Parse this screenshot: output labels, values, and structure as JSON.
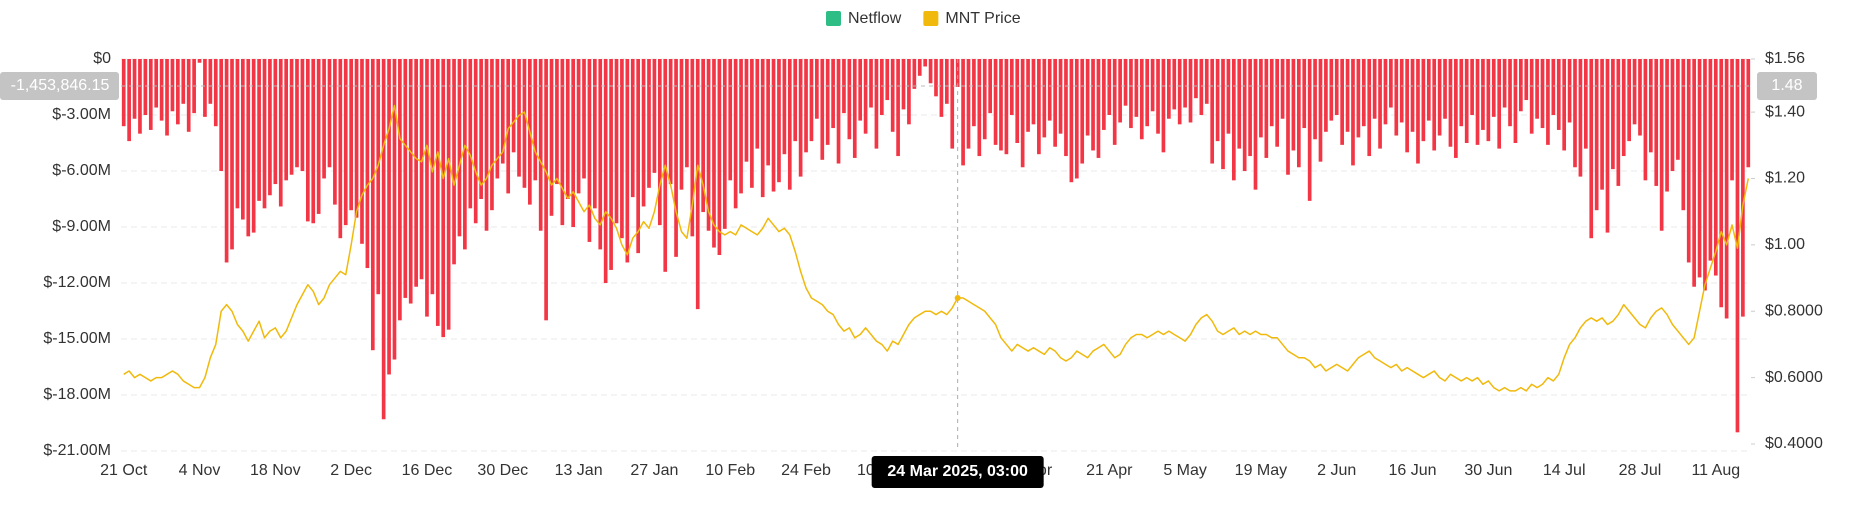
{
  "chart_data": {
    "type": "bar-line",
    "categories": [
      "21 Oct",
      null,
      null,
      null,
      null,
      null,
      null,
      null,
      null,
      null,
      null,
      null,
      null,
      null,
      "4 Nov",
      null,
      null,
      null,
      null,
      null,
      null,
      null,
      null,
      null,
      null,
      null,
      null,
      null,
      "18 Nov",
      null,
      null,
      null,
      null,
      null,
      null,
      null,
      null,
      null,
      null,
      null,
      null,
      null,
      "2 Dec",
      null,
      null,
      null,
      null,
      null,
      null,
      null,
      null,
      null,
      null,
      null,
      null,
      null,
      "16 Dec",
      null,
      null,
      null,
      null,
      null,
      null,
      null,
      null,
      null,
      null,
      null,
      null,
      null,
      "30 Dec",
      null,
      null,
      null,
      null,
      null,
      null,
      null,
      null,
      null,
      null,
      null,
      null,
      null,
      "13 Jan",
      null,
      null,
      null,
      null,
      null,
      null,
      null,
      null,
      null,
      null,
      null,
      null,
      null,
      "27 Jan",
      null,
      null,
      null,
      null,
      null,
      null,
      null,
      null,
      null,
      null,
      null,
      null,
      null,
      "10 Feb",
      null,
      null,
      null,
      null,
      null,
      null,
      null,
      null,
      null,
      null,
      null,
      null,
      null,
      "24 Feb",
      null,
      null,
      null,
      null,
      null,
      null,
      null,
      null,
      null,
      null,
      null,
      null,
      null,
      "10 Mar",
      null,
      null,
      null,
      null,
      null,
      null,
      null,
      null,
      null,
      null,
      null,
      null,
      null,
      "24 Mar",
      null,
      null,
      null,
      null,
      null,
      null,
      null,
      null,
      null,
      null,
      null,
      null,
      null,
      "7 Apr",
      null,
      null,
      null,
      null,
      null,
      null,
      null,
      null,
      null,
      null,
      null,
      null,
      null,
      "21 Apr",
      null,
      null,
      null,
      null,
      null,
      null,
      null,
      null,
      null,
      null,
      null,
      null,
      null,
      "5 May",
      null,
      null,
      null,
      null,
      null,
      null,
      null,
      null,
      null,
      null,
      null,
      null,
      null,
      "19 May",
      null,
      null,
      null,
      null,
      null,
      null,
      null,
      null,
      null,
      null,
      null,
      null,
      null,
      "2 Jun",
      null,
      null,
      null,
      null,
      null,
      null,
      null,
      null,
      null,
      null,
      null,
      null,
      null,
      "16 Jun",
      null,
      null,
      null,
      null,
      null,
      null,
      null,
      null,
      null,
      null,
      null,
      null,
      null,
      "30 Jun",
      null,
      null,
      null,
      null,
      null,
      null,
      null,
      null,
      null,
      null,
      null,
      null,
      null,
      "14 Jul",
      null,
      null,
      null,
      null,
      null,
      null,
      null,
      null,
      null,
      null,
      null,
      null,
      null,
      "28 Jul",
      null,
      null,
      null,
      null,
      null,
      null,
      null,
      null,
      null,
      null,
      null,
      null,
      null,
      "11 Aug",
      null,
      null,
      null,
      null,
      null,
      null
    ],
    "series": [
      {
        "name": "Netflow",
        "color": "#2ebd85",
        "negative_color": "#f23645",
        "type": "bar",
        "values": [
          -3.6,
          -4.4,
          -3.2,
          -4.0,
          -3.0,
          -3.8,
          -2.6,
          -3.3,
          -4.1,
          -2.8,
          -3.5,
          -2.4,
          -3.9,
          -2.9,
          -0.2,
          -3.1,
          -2.4,
          -3.6,
          -6.0,
          -10.9,
          -10.2,
          -8.0,
          -8.6,
          -9.5,
          -9.3,
          -7.6,
          -8.0,
          -7.3,
          -6.7,
          -7.9,
          -6.5,
          -6.2,
          -5.8,
          -6.0,
          -8.7,
          -8.8,
          -8.3,
          -6.4,
          -5.8,
          -7.8,
          -9.6,
          -8.9,
          -8.1,
          -8.5,
          -9.9,
          -11.2,
          -15.6,
          -12.6,
          -19.3,
          -16.9,
          -16.1,
          -14.0,
          -12.8,
          -13.1,
          -12.2,
          -11.8,
          -13.8,
          -12.6,
          -14.3,
          -14.9,
          -14.5,
          -11.0,
          -9.5,
          -10.2,
          -8.0,
          -8.8,
          -7.5,
          -9.2,
          -8.1,
          -6.4,
          -5.6,
          -7.2,
          -5.0,
          -6.3,
          -6.9,
          -7.8,
          -6.5,
          -9.2,
          -14.0,
          -8.4,
          -6.7,
          -8.9,
          -7.5,
          -9.0,
          -7.2,
          -6.4,
          -9.8,
          -8.0,
          -10.2,
          -12.0,
          -11.3,
          -8.8,
          -9.6,
          -10.9,
          -7.4,
          -10.4,
          -7.9,
          -6.9,
          -6.1,
          -8.9,
          -11.4,
          -6.7,
          -10.6,
          -7.0,
          -5.8,
          -9.5,
          -13.4,
          -8.2,
          -9.2,
          -10.1,
          -10.5,
          -9.1,
          -6.5,
          -8.0,
          -7.2,
          -5.5,
          -6.9,
          -4.8,
          -7.4,
          -5.7,
          -7.1,
          -6.6,
          -5.1,
          -7.0,
          -4.4,
          -6.3,
          -5.0,
          -4.4,
          -3.2,
          -5.4,
          -4.6,
          -3.7,
          -5.6,
          -2.9,
          -4.3,
          -5.3,
          -3.3,
          -4.0,
          -2.6,
          -4.8,
          -3.0,
          -2.2,
          -3.9,
          -5.2,
          -2.7,
          -3.5,
          -1.6,
          -0.9,
          -0.4,
          -1.3,
          -2.0,
          -3.1,
          -2.4,
          -4.8,
          -1.5,
          -5.7,
          -4.8,
          -3.6,
          -5.2,
          -4.3,
          -2.9,
          -4.6,
          -4.9,
          -5.1,
          -3.0,
          -4.5,
          -5.8,
          -3.9,
          -3.5,
          -5.1,
          -4.2,
          -3.3,
          -4.7,
          -4.0,
          -5.2,
          -6.6,
          -6.4,
          -5.6,
          -4.1,
          -4.9,
          -5.3,
          -3.8,
          -3.0,
          -4.6,
          -3.4,
          -2.5,
          -3.7,
          -3.1,
          -4.3,
          -3.6,
          -2.8,
          -4.0,
          -5.0,
          -3.2,
          -2.7,
          -3.5,
          -2.6,
          -3.4,
          -2.1,
          -3.0,
          -2.4,
          -5.6,
          -4.4,
          -5.9,
          -4.0,
          -6.5,
          -4.8,
          -6.0,
          -5.2,
          -7.0,
          -4.2,
          -5.3,
          -3.6,
          -4.7,
          -3.2,
          -6.2,
          -4.9,
          -5.8,
          -3.7,
          -7.6,
          -4.3,
          -5.5,
          -3.9,
          -3.3,
          -3.0,
          -4.6,
          -3.9,
          -5.7,
          -4.2,
          -3.6,
          -5.2,
          -3.2,
          -4.8,
          -3.5,
          -2.6,
          -4.1,
          -3.4,
          -5.0,
          -3.9,
          -5.6,
          -4.4,
          -3.3,
          -4.9,
          -4.1,
          -3.2,
          -4.7,
          -5.3,
          -3.6,
          -4.5,
          -3.0,
          -4.6,
          -3.8,
          -4.4,
          -3.1,
          -4.8,
          -2.6,
          -3.6,
          -4.5,
          -2.8,
          -2.2,
          -4.0,
          -3.2,
          -3.7,
          -4.6,
          -3.0,
          -3.8,
          -4.9,
          -3.4,
          -5.8,
          -6.3,
          -4.8,
          -9.6,
          -8.1,
          -7.0,
          -9.3,
          -5.9,
          -6.8,
          -5.2,
          -4.4,
          -3.5,
          -4.1,
          -6.5,
          -5.0,
          -6.8,
          -9.2,
          -7.1,
          -6.0,
          -5.4,
          -8.1,
          -10.9,
          -12.2,
          -11.7,
          -12.4,
          -10.8,
          -11.6,
          -13.3,
          -13.9,
          -6.5,
          -20.0,
          -13.8,
          -5.8
        ]
      },
      {
        "name": "MNT Price",
        "color": "#f0b90b",
        "type": "line",
        "axis": "y2",
        "values": [
          0.61,
          0.62,
          0.6,
          0.61,
          0.6,
          0.59,
          0.6,
          0.6,
          0.61,
          0.62,
          0.61,
          0.59,
          0.58,
          0.57,
          0.57,
          0.6,
          0.66,
          0.7,
          0.8,
          0.82,
          0.8,
          0.76,
          0.74,
          0.71,
          0.74,
          0.77,
          0.72,
          0.74,
          0.75,
          0.72,
          0.74,
          0.78,
          0.82,
          0.85,
          0.88,
          0.86,
          0.82,
          0.84,
          0.88,
          0.9,
          0.92,
          0.91,
          1.0,
          1.1,
          1.15,
          1.18,
          1.2,
          1.24,
          1.3,
          1.35,
          1.42,
          1.32,
          1.3,
          1.28,
          1.26,
          1.25,
          1.3,
          1.22,
          1.28,
          1.2,
          1.26,
          1.18,
          1.24,
          1.3,
          1.27,
          1.22,
          1.18,
          1.2,
          1.24,
          1.26,
          1.28,
          1.35,
          1.37,
          1.39,
          1.4,
          1.34,
          1.28,
          1.25,
          1.22,
          1.18,
          1.2,
          1.17,
          1.14,
          1.16,
          1.13,
          1.1,
          1.12,
          1.08,
          1.06,
          1.1,
          1.08,
          1.05,
          1.0,
          0.97,
          1.02,
          1.04,
          1.07,
          1.05,
          1.1,
          1.18,
          1.24,
          1.18,
          1.1,
          1.04,
          1.02,
          1.12,
          1.24,
          1.18,
          1.1,
          1.06,
          1.04,
          1.03,
          1.04,
          1.03,
          1.06,
          1.05,
          1.04,
          1.03,
          1.05,
          1.08,
          1.06,
          1.04,
          1.05,
          1.03,
          0.98,
          0.92,
          0.87,
          0.84,
          0.83,
          0.82,
          0.8,
          0.79,
          0.76,
          0.74,
          0.75,
          0.72,
          0.73,
          0.75,
          0.73,
          0.71,
          0.7,
          0.68,
          0.71,
          0.7,
          0.73,
          0.76,
          0.78,
          0.79,
          0.8,
          0.8,
          0.79,
          0.8,
          0.79,
          0.81,
          0.84,
          0.84,
          0.83,
          0.82,
          0.81,
          0.8,
          0.78,
          0.76,
          0.72,
          0.7,
          0.68,
          0.7,
          0.69,
          0.68,
          0.69,
          0.68,
          0.67,
          0.69,
          0.68,
          0.66,
          0.65,
          0.66,
          0.68,
          0.67,
          0.66,
          0.68,
          0.69,
          0.7,
          0.68,
          0.66,
          0.67,
          0.7,
          0.72,
          0.73,
          0.73,
          0.72,
          0.73,
          0.74,
          0.73,
          0.74,
          0.73,
          0.72,
          0.71,
          0.73,
          0.76,
          0.78,
          0.79,
          0.77,
          0.74,
          0.73,
          0.74,
          0.75,
          0.73,
          0.74,
          0.73,
          0.74,
          0.73,
          0.73,
          0.72,
          0.72,
          0.7,
          0.68,
          0.67,
          0.66,
          0.66,
          0.65,
          0.63,
          0.64,
          0.62,
          0.63,
          0.64,
          0.63,
          0.62,
          0.64,
          0.66,
          0.67,
          0.68,
          0.66,
          0.65,
          0.64,
          0.63,
          0.64,
          0.62,
          0.63,
          0.62,
          0.61,
          0.6,
          0.61,
          0.62,
          0.6,
          0.59,
          0.61,
          0.6,
          0.59,
          0.6,
          0.59,
          0.6,
          0.58,
          0.59,
          0.57,
          0.56,
          0.57,
          0.56,
          0.56,
          0.57,
          0.56,
          0.58,
          0.57,
          0.58,
          0.6,
          0.59,
          0.61,
          0.66,
          0.7,
          0.72,
          0.75,
          0.77,
          0.78,
          0.77,
          0.78,
          0.76,
          0.77,
          0.79,
          0.82,
          0.8,
          0.78,
          0.76,
          0.75,
          0.78,
          0.8,
          0.81,
          0.79,
          0.76,
          0.74,
          0.72,
          0.7,
          0.72,
          0.8,
          0.88,
          0.93,
          0.98,
          1.04,
          1.0,
          1.06,
          0.99,
          1.12,
          1.2
        ]
      }
    ],
    "ylim": [
      -21,
      0
    ],
    "yticks": [
      {
        "value": 0,
        "label": "$0"
      },
      {
        "value": -3,
        "label": "$-3.00M"
      },
      {
        "value": -6,
        "label": "$-6.00M"
      },
      {
        "value": -9,
        "label": "$-9.00M"
      },
      {
        "value": -12,
        "label": "$-12.00M"
      },
      {
        "value": -15,
        "label": "$-15.00M"
      },
      {
        "value": -18,
        "label": "$-18.00M"
      },
      {
        "value": -21,
        "label": "$-21.00M"
      }
    ],
    "y2lim": [
      0.4,
      1.56
    ],
    "y2ticks": [
      {
        "value": 1.56,
        "label": "$1.56"
      },
      {
        "value": 1.4,
        "label": "$1.40"
      },
      {
        "value": 1.2,
        "label": "$1.20"
      },
      {
        "value": 1.0,
        "label": "$1.00"
      },
      {
        "value": 0.8,
        "label": "$0.8000"
      },
      {
        "value": 0.6,
        "label": "$0.6000"
      },
      {
        "value": 0.4,
        "label": "$0.4000"
      }
    ],
    "grid": true,
    "legend": "top",
    "crosshair": {
      "x_label": "24 Mar 2025, 03:00",
      "y_label": "-1,453,846.15",
      "y2_label": "1.48"
    }
  }
}
